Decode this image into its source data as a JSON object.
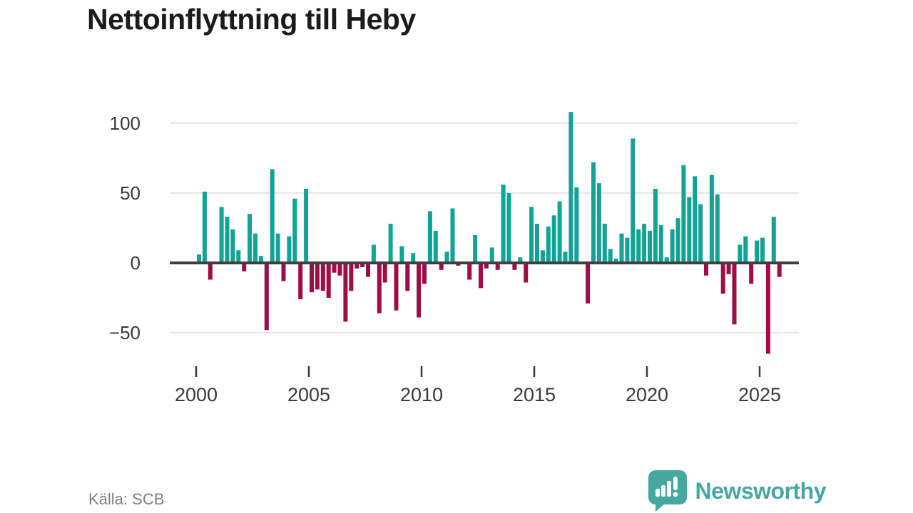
{
  "title": "Nettoinflyttning till Heby",
  "source": {
    "label": "Källa: SCB"
  },
  "branding": {
    "name": "Newsworthy",
    "logo_icon": "speech-bubble-bar-chart-exclamation-icon",
    "color": "#46a7a1"
  },
  "chart_data": {
    "type": "bar",
    "title": "Nettoinflyttning till Heby",
    "frequency": "quarterly",
    "start_period": "2000 Q1",
    "x_tick_labels": [
      "2000",
      "2005",
      "2010",
      "2015",
      "2020",
      "2025"
    ],
    "y_ticks": [
      100,
      50,
      0,
      -50
    ],
    "y_tick_labels": [
      "100",
      "50",
      "0",
      "−50"
    ],
    "ylim": [
      -72,
      112
    ],
    "grid": "horizontal",
    "legend": "none",
    "colors": {
      "positive": "#10a396",
      "negative": "#a00c46",
      "axis": "#3f3f3f",
      "gridline": "#e4e4e4",
      "tick_text": "#3a3a3a"
    },
    "values": [
      6,
      51,
      -12,
      0,
      40,
      33,
      24,
      9,
      -6,
      35,
      21,
      5,
      -48,
      67,
      21,
      -13,
      19,
      46,
      -26,
      53,
      -21,
      -19,
      -20,
      -25,
      -7,
      -9,
      -42,
      -20,
      -4,
      -3,
      -10,
      13,
      -36,
      -14,
      28,
      -34,
      12,
      -20,
      7,
      -39,
      -15,
      37,
      23,
      -5,
      8,
      39,
      -2,
      0,
      -12,
      20,
      -18,
      -4,
      11,
      -5,
      56,
      50,
      -5,
      4,
      -14,
      40,
      28,
      9,
      26,
      34,
      44,
      8,
      108,
      54,
      1,
      -29,
      72,
      57,
      28,
      10,
      3,
      21,
      18,
      89,
      24,
      28,
      23,
      53,
      27,
      4,
      24,
      32,
      70,
      47,
      62,
      42,
      -9,
      63,
      49,
      -22,
      -8,
      -44,
      13,
      19,
      -15,
      16,
      18,
      -65,
      33,
      -10
    ]
  }
}
